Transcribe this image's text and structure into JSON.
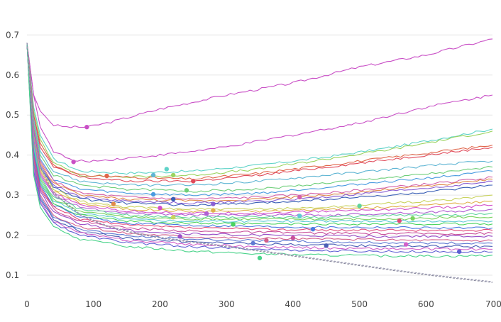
{
  "chart_data": {
    "type": "line",
    "title": "",
    "xlabel": "",
    "ylabel": "",
    "xlim": [
      0,
      700
    ],
    "ylim": [
      0.07,
      0.72
    ],
    "grid": true,
    "legend": "none",
    "x_ticks": [
      0,
      100,
      200,
      300,
      400,
      500,
      600,
      700
    ],
    "y_ticks": [
      0.1,
      0.2,
      0.3,
      0.4,
      0.5,
      0.6,
      0.7
    ],
    "x_tick_labels": [
      "0",
      "100",
      "200",
      "300",
      "400",
      "500",
      "600",
      "700"
    ],
    "y_tick_labels": [
      "0.1",
      "0.2",
      "0.3",
      "0.4",
      "0.5",
      "0.6",
      "0.7"
    ],
    "series": [
      {
        "color": "#c94fc6",
        "x": [
          0,
          10,
          20,
          40,
          60,
          90,
          120,
          200,
          300,
          400,
          500,
          600,
          700
        ],
        "y": [
          0.68,
          0.55,
          0.51,
          0.475,
          0.47,
          0.47,
          0.48,
          0.515,
          0.55,
          0.58,
          0.62,
          0.65,
          0.69
        ],
        "marker_x": 90,
        "marker_y": 0.47
      },
      {
        "color": "#c94fc6",
        "x": [
          0,
          10,
          20,
          40,
          70,
          100,
          200,
          300,
          400,
          500,
          600,
          700
        ],
        "y": [
          0.68,
          0.55,
          0.47,
          0.41,
          0.385,
          0.385,
          0.4,
          0.42,
          0.45,
          0.48,
          0.52,
          0.55
        ],
        "marker_x": 70,
        "marker_y": 0.383
      },
      {
        "color": "#5fd3c8",
        "x": [
          0,
          10,
          20,
          40,
          80,
          150,
          250,
          350,
          450,
          550,
          650,
          700
        ],
        "y": [
          0.68,
          0.52,
          0.45,
          0.39,
          0.36,
          0.355,
          0.36,
          0.375,
          0.395,
          0.42,
          0.45,
          0.465
        ],
        "marker_x": 210,
        "marker_y": 0.365
      },
      {
        "color": "#9bd35f",
        "x": [
          0,
          10,
          20,
          40,
          80,
          150,
          250,
          350,
          450,
          550,
          650,
          700
        ],
        "y": [
          0.68,
          0.51,
          0.44,
          0.38,
          0.35,
          0.345,
          0.35,
          0.365,
          0.39,
          0.415,
          0.445,
          0.46
        ],
        "marker_x": 220,
        "marker_y": 0.35
      },
      {
        "color": "#e0664a",
        "x": [
          0,
          10,
          20,
          40,
          80,
          150,
          250,
          350,
          450,
          550,
          650,
          700
        ],
        "y": [
          0.68,
          0.5,
          0.43,
          0.375,
          0.35,
          0.345,
          0.34,
          0.355,
          0.375,
          0.395,
          0.415,
          0.425
        ],
        "marker_x": 120,
        "marker_y": 0.348
      },
      {
        "color": "#e04a5a",
        "x": [
          0,
          10,
          20,
          40,
          80,
          150,
          250,
          350,
          450,
          550,
          650,
          700
        ],
        "y": [
          0.68,
          0.5,
          0.42,
          0.37,
          0.345,
          0.335,
          0.335,
          0.35,
          0.37,
          0.39,
          0.41,
          0.42
        ],
        "marker_x": 250,
        "marker_y": 0.335
      },
      {
        "color": "#5fb5d3",
        "x": [
          0,
          10,
          20,
          40,
          80,
          150,
          250,
          350,
          450,
          550,
          650,
          700
        ],
        "y": [
          0.68,
          0.49,
          0.41,
          0.36,
          0.335,
          0.325,
          0.325,
          0.335,
          0.35,
          0.365,
          0.38,
          0.385
        ],
        "marker_x": 190,
        "marker_y": 0.35
      },
      {
        "color": "#6fcf7a",
        "x": [
          0,
          10,
          20,
          40,
          80,
          150,
          250,
          350,
          450,
          550,
          650,
          700
        ],
        "y": [
          0.68,
          0.48,
          0.4,
          0.35,
          0.325,
          0.315,
          0.31,
          0.315,
          0.33,
          0.345,
          0.36,
          0.37
        ],
        "marker_x": 240,
        "marker_y": 0.312
      },
      {
        "color": "#4a9be0",
        "x": [
          0,
          10,
          20,
          40,
          80,
          150,
          250,
          350,
          450,
          550,
          650,
          700
        ],
        "y": [
          0.68,
          0.47,
          0.39,
          0.34,
          0.315,
          0.305,
          0.3,
          0.305,
          0.32,
          0.335,
          0.35,
          0.36
        ],
        "marker_x": 190,
        "marker_y": 0.302
      },
      {
        "color": "#d35fa8",
        "x": [
          0,
          10,
          20,
          40,
          80,
          150,
          250,
          350,
          450,
          550,
          650,
          700
        ],
        "y": [
          0.68,
          0.47,
          0.385,
          0.335,
          0.305,
          0.295,
          0.29,
          0.295,
          0.305,
          0.32,
          0.335,
          0.345
        ],
        "marker_x": 410,
        "marker_y": 0.295
      },
      {
        "color": "#e08a4a",
        "x": [
          0,
          10,
          20,
          40,
          80,
          150,
          250,
          350,
          450,
          550,
          650,
          700
        ],
        "y": [
          0.68,
          0.46,
          0.38,
          0.33,
          0.3,
          0.29,
          0.285,
          0.29,
          0.3,
          0.315,
          0.33,
          0.34
        ],
        "marker_x": 130,
        "marker_y": 0.278
      },
      {
        "color": "#8a5fd3",
        "x": [
          0,
          10,
          20,
          40,
          80,
          150,
          250,
          350,
          450,
          550,
          650,
          700
        ],
        "y": [
          0.68,
          0.46,
          0.375,
          0.325,
          0.295,
          0.285,
          0.28,
          0.285,
          0.295,
          0.31,
          0.325,
          0.335
        ],
        "marker_x": 280,
        "marker_y": 0.278
      },
      {
        "color": "#3a5fb5",
        "x": [
          0,
          10,
          20,
          40,
          80,
          150,
          250,
          350,
          450,
          550,
          650,
          700
        ],
        "y": [
          0.68,
          0.45,
          0.37,
          0.32,
          0.29,
          0.28,
          0.275,
          0.28,
          0.29,
          0.3,
          0.315,
          0.325
        ],
        "marker_x": 220,
        "marker_y": 0.29
      },
      {
        "color": "#c9d35f",
        "x": [
          0,
          10,
          20,
          40,
          80,
          150,
          250,
          350,
          450,
          550,
          650,
          700
        ],
        "y": [
          0.68,
          0.45,
          0.365,
          0.315,
          0.285,
          0.27,
          0.265,
          0.265,
          0.27,
          0.28,
          0.29,
          0.3
        ],
        "marker_x": 220,
        "marker_y": 0.245
      },
      {
        "color": "#e0b04a",
        "x": [
          0,
          10,
          20,
          40,
          80,
          150,
          250,
          350,
          450,
          550,
          650,
          700
        ],
        "y": [
          0.68,
          0.44,
          0.36,
          0.31,
          0.28,
          0.265,
          0.26,
          0.26,
          0.265,
          0.27,
          0.28,
          0.285
        ],
        "marker_x": 280,
        "marker_y": 0.262
      },
      {
        "color": "#d34fc9",
        "x": [
          0,
          10,
          20,
          40,
          80,
          150,
          250,
          350,
          450,
          550,
          650,
          700
        ],
        "y": [
          0.68,
          0.44,
          0.355,
          0.305,
          0.275,
          0.26,
          0.255,
          0.255,
          0.26,
          0.265,
          0.27,
          0.275
        ],
        "marker_x": 200,
        "marker_y": 0.268
      },
      {
        "color": "#b05fd3",
        "x": [
          0,
          10,
          20,
          40,
          80,
          150,
          250,
          350,
          450,
          550,
          650,
          700
        ],
        "y": [
          0.68,
          0.43,
          0.35,
          0.3,
          0.27,
          0.255,
          0.25,
          0.25,
          0.25,
          0.255,
          0.26,
          0.265
        ],
        "marker_x": 270,
        "marker_y": 0.254
      },
      {
        "color": "#5fd39b",
        "x": [
          0,
          10,
          20,
          40,
          80,
          150,
          250,
          350,
          450,
          550,
          650,
          700
        ],
        "y": [
          0.68,
          0.43,
          0.345,
          0.295,
          0.265,
          0.25,
          0.245,
          0.245,
          0.245,
          0.25,
          0.25,
          0.255
        ],
        "marker_x": 500,
        "marker_y": 0.273
      },
      {
        "color": "#7ad35f",
        "x": [
          0,
          10,
          20,
          40,
          80,
          150,
          250,
          350,
          450,
          550,
          650,
          700
        ],
        "y": [
          0.68,
          0.42,
          0.34,
          0.29,
          0.26,
          0.245,
          0.24,
          0.24,
          0.24,
          0.24,
          0.245,
          0.245
        ],
        "marker_x": 580,
        "marker_y": 0.242
      },
      {
        "color": "#5fc9d3",
        "x": [
          0,
          10,
          20,
          40,
          80,
          150,
          250,
          350,
          450,
          550,
          650,
          700
        ],
        "y": [
          0.68,
          0.42,
          0.335,
          0.285,
          0.255,
          0.24,
          0.235,
          0.235,
          0.235,
          0.235,
          0.235,
          0.235
        ],
        "marker_x": 410,
        "marker_y": 0.248
      },
      {
        "color": "#4ad35f",
        "x": [
          0,
          10,
          20,
          40,
          80,
          150,
          250,
          350,
          450,
          550,
          650,
          700
        ],
        "y": [
          0.68,
          0.41,
          0.33,
          0.28,
          0.25,
          0.235,
          0.23,
          0.228,
          0.228,
          0.228,
          0.228,
          0.228
        ],
        "marker_x": 310,
        "marker_y": 0.227
      },
      {
        "color": "#4a7ae0",
        "x": [
          0,
          10,
          20,
          40,
          80,
          150,
          250,
          350,
          450,
          550,
          650,
          700
        ],
        "y": [
          0.68,
          0.41,
          0.325,
          0.275,
          0.245,
          0.23,
          0.225,
          0.222,
          0.22,
          0.22,
          0.218,
          0.218
        ],
        "marker_x": 430,
        "marker_y": 0.215
      },
      {
        "color": "#e04a7a",
        "x": [
          0,
          10,
          20,
          40,
          80,
          150,
          250,
          350,
          450,
          550,
          650,
          700
        ],
        "y": [
          0.68,
          0.4,
          0.32,
          0.27,
          0.24,
          0.225,
          0.218,
          0.215,
          0.213,
          0.212,
          0.212,
          0.212
        ],
        "marker_x": 560,
        "marker_y": 0.236
      },
      {
        "color": "#c94f9b",
        "x": [
          0,
          10,
          20,
          40,
          80,
          150,
          250,
          350,
          450,
          550,
          650,
          700
        ],
        "y": [
          0.68,
          0.4,
          0.315,
          0.265,
          0.235,
          0.218,
          0.21,
          0.207,
          0.205,
          0.204,
          0.204,
          0.205
        ],
        "marker_x": 400,
        "marker_y": 0.193
      },
      {
        "color": "#9b4fc9",
        "x": [
          0,
          10,
          20,
          40,
          80,
          150,
          250,
          350,
          450,
          550,
          650,
          700
        ],
        "y": [
          0.68,
          0.39,
          0.31,
          0.258,
          0.228,
          0.212,
          0.203,
          0.2,
          0.198,
          0.197,
          0.197,
          0.197
        ],
        "marker_x": 230,
        "marker_y": 0.197
      },
      {
        "color": "#d35f8a",
        "x": [
          0,
          10,
          20,
          40,
          80,
          150,
          250,
          350,
          450,
          550,
          650,
          700
        ],
        "y": [
          0.68,
          0.39,
          0.3,
          0.25,
          0.22,
          0.205,
          0.196,
          0.192,
          0.19,
          0.188,
          0.187,
          0.187
        ],
        "marker_x": 360,
        "marker_y": 0.187
      },
      {
        "color": "#5f7ad3",
        "x": [
          0,
          10,
          20,
          40,
          80,
          150,
          250,
          350,
          450,
          550,
          650,
          700
        ],
        "y": [
          0.68,
          0.38,
          0.295,
          0.245,
          0.215,
          0.198,
          0.19,
          0.186,
          0.183,
          0.181,
          0.18,
          0.18
        ],
        "marker_x": 340,
        "marker_y": 0.18
      },
      {
        "color": "#4a5fb5",
        "x": [
          0,
          10,
          20,
          40,
          80,
          150,
          250,
          350,
          450,
          550,
          650,
          700
        ],
        "y": [
          0.68,
          0.37,
          0.29,
          0.24,
          0.21,
          0.192,
          0.183,
          0.178,
          0.175,
          0.173,
          0.172,
          0.172
        ],
        "marker_x": 450,
        "marker_y": 0.174
      },
      {
        "color": "#d35fc9",
        "x": [
          0,
          10,
          20,
          40,
          80,
          150,
          250,
          350,
          450,
          550,
          650,
          700
        ],
        "y": [
          0.68,
          0.37,
          0.285,
          0.235,
          0.205,
          0.187,
          0.177,
          0.171,
          0.168,
          0.166,
          0.165,
          0.165
        ],
        "marker_x": 570,
        "marker_y": 0.177
      },
      {
        "color": "#5f5fd3",
        "x": [
          0,
          10,
          20,
          40,
          80,
          150,
          250,
          350,
          450,
          550,
          650,
          700
        ],
        "y": [
          0.68,
          0.36,
          0.28,
          0.23,
          0.2,
          0.182,
          0.171,
          0.165,
          0.161,
          0.159,
          0.158,
          0.158
        ],
        "marker_x": 650,
        "marker_y": 0.159
      },
      {
        "color": "#4ad38a",
        "x": [
          0,
          10,
          20,
          40,
          80,
          150,
          250,
          350,
          450,
          550,
          650,
          700
        ],
        "y": [
          0.68,
          0.35,
          0.27,
          0.22,
          0.19,
          0.172,
          0.16,
          0.153,
          0.15,
          0.148,
          0.148,
          0.15
        ],
        "marker_x": 350,
        "marker_y": 0.143
      },
      {
        "color": "#8a8a9e",
        "dashed": true,
        "x": [
          0,
          10,
          20,
          40,
          80,
          120,
          160,
          200,
          250,
          300,
          350,
          400,
          450,
          500,
          550,
          600,
          650,
          700
        ],
        "y": [
          0.68,
          0.45,
          0.37,
          0.305,
          0.25,
          0.222,
          0.205,
          0.193,
          0.182,
          0.171,
          0.16,
          0.148,
          0.136,
          0.124,
          0.112,
          0.101,
          0.091,
          0.082
        ]
      },
      {
        "color": "#9e9eb5",
        "dashed": true,
        "x": [
          0,
          10,
          20,
          40,
          80,
          120,
          160,
          200,
          250,
          300,
          350,
          400,
          450,
          500,
          550,
          600,
          650,
          700
        ],
        "y": [
          0.68,
          0.45,
          0.372,
          0.307,
          0.252,
          0.224,
          0.207,
          0.195,
          0.184,
          0.173,
          0.162,
          0.15,
          0.138,
          0.126,
          0.114,
          0.103,
          0.093,
          0.084
        ]
      }
    ]
  }
}
